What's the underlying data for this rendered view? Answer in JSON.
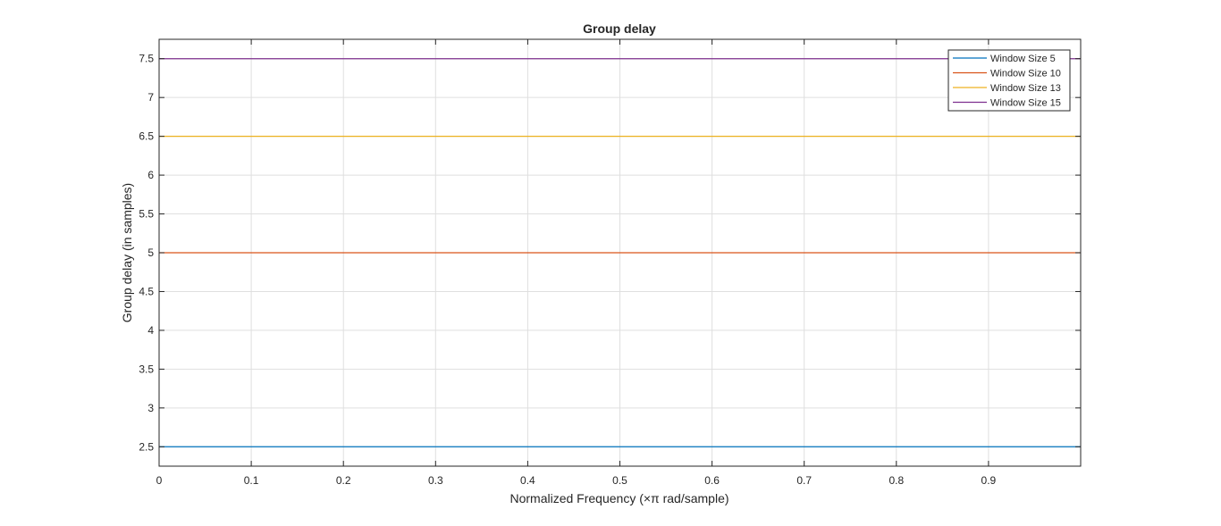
{
  "chart_data": {
    "type": "line",
    "title": "Group delay",
    "xlabel": "Normalized Frequency (×π rad/sample)",
    "ylabel": "Group delay (in samples)",
    "xlim": [
      0,
      1
    ],
    "ylim": [
      2.25,
      7.75
    ],
    "xticks": [
      0,
      0.1,
      0.2,
      0.3,
      0.4,
      0.5,
      0.6,
      0.7,
      0.8,
      0.9
    ],
    "xtick_labels": [
      "0",
      "0.1",
      "0.2",
      "0.3",
      "0.4",
      "0.5",
      "0.6",
      "0.7",
      "0.8",
      "0.9"
    ],
    "yticks": [
      2.5,
      3,
      3.5,
      4,
      4.5,
      5,
      5.5,
      6,
      6.5,
      7,
      7.5
    ],
    "ytick_labels": [
      "2.5",
      "3",
      "3.5",
      "4",
      "4.5",
      "5",
      "5.5",
      "6",
      "6.5",
      "7",
      "7.5"
    ],
    "grid": true,
    "legend_position": "top-right",
    "x": [
      0,
      1
    ],
    "series": [
      {
        "name": "Window Size 5",
        "values": [
          2.5,
          2.5
        ],
        "color": "#0072BD"
      },
      {
        "name": "Window Size 10",
        "values": [
          5,
          5
        ],
        "color": "#D95319"
      },
      {
        "name": "Window Size 13",
        "values": [
          6.5,
          6.5
        ],
        "color": "#EDB120"
      },
      {
        "name": "Window Size 15",
        "values": [
          7.5,
          7.5
        ],
        "color": "#7E2F8E"
      }
    ]
  }
}
